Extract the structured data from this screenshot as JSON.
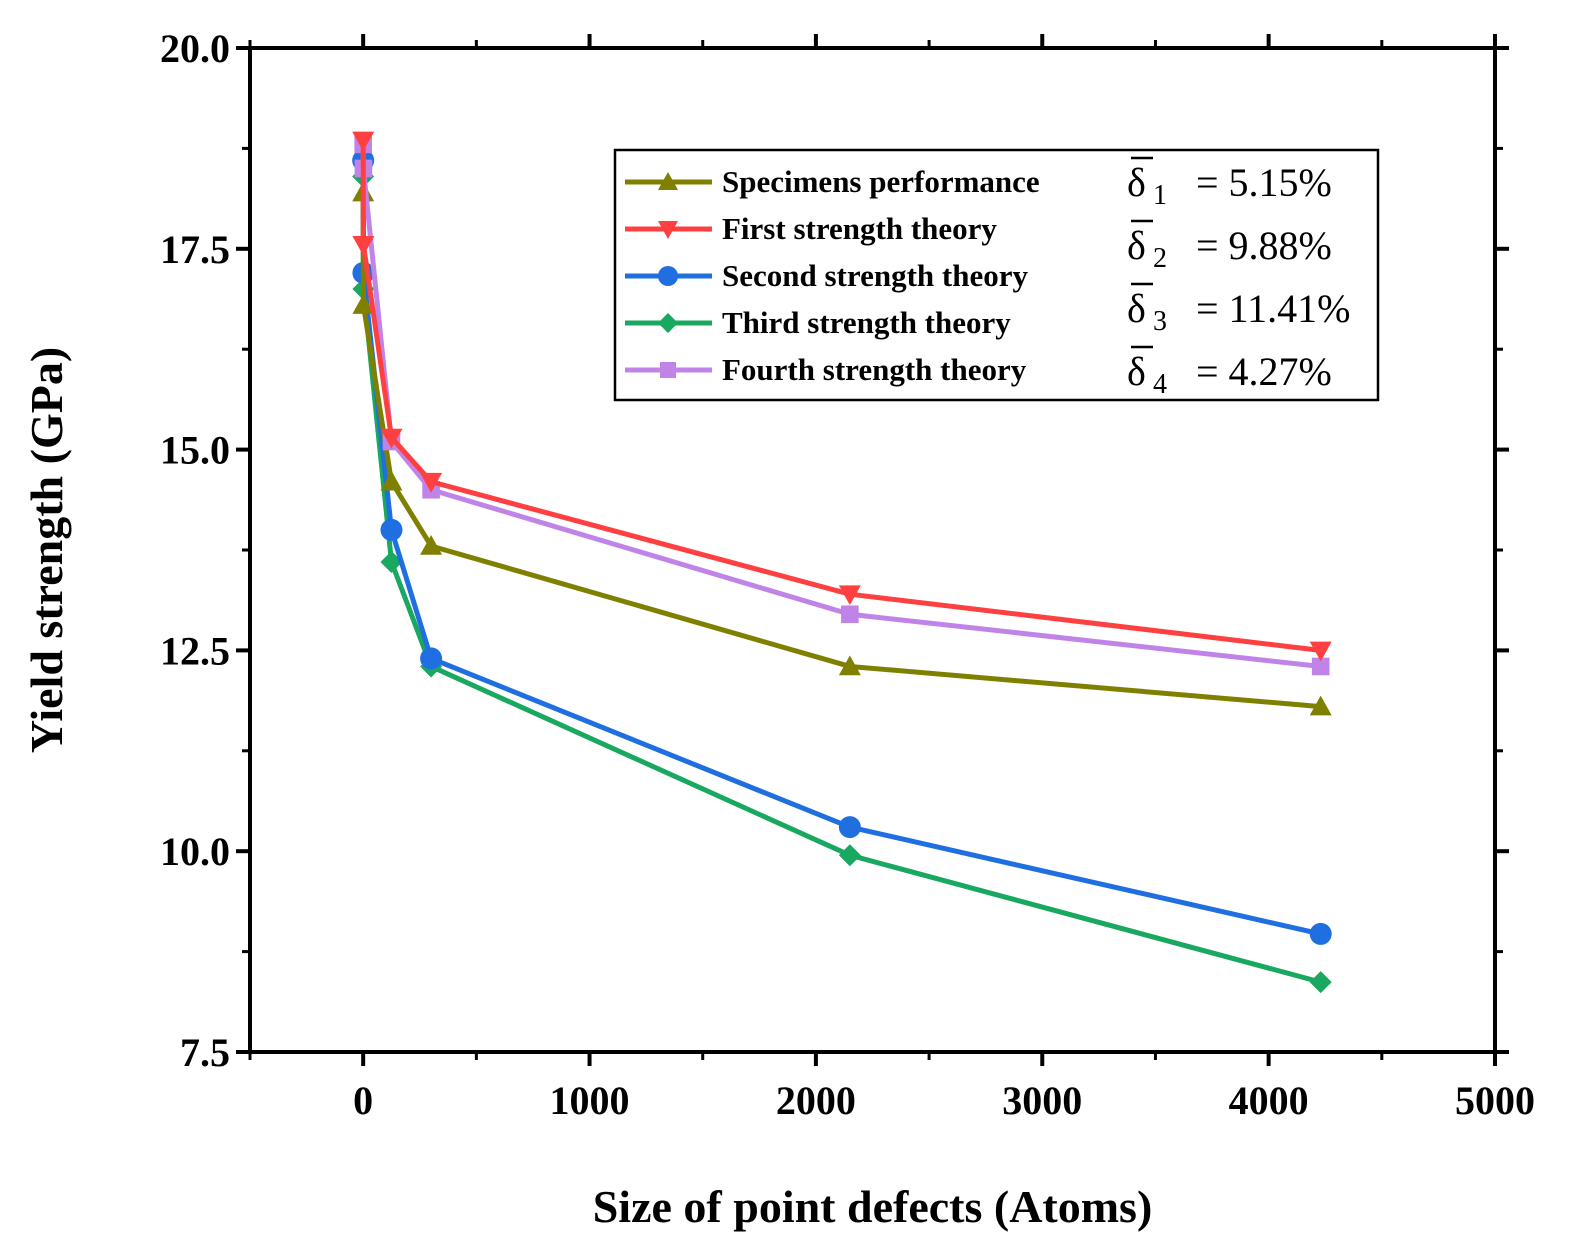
{
  "chart_data": {
    "type": "line",
    "title": "",
    "xlabel": "Size of point defects (Atoms)",
    "ylabel": "Yield strength (GPa)",
    "xlim": [
      -500,
      5000
    ],
    "ylim": [
      7.5,
      20.0
    ],
    "xticks": [
      0,
      1000,
      2000,
      3000,
      4000,
      5000
    ],
    "xtick_labels": [
      "0",
      "1000",
      "2000",
      "3000",
      "4000",
      "5000"
    ],
    "yticks": [
      7.5,
      10.0,
      12.5,
      15.0,
      17.5,
      20.0
    ],
    "ytick_labels": [
      "7.5",
      "10.0",
      "12.5",
      "15.0",
      "17.5",
      "20.0"
    ],
    "grid": false,
    "legend_position": "top-right",
    "series": [
      {
        "name": "Specimens performance",
        "color": "#808000",
        "marker": "triangle-up",
        "delta_symbol": "δ",
        "delta_sub": "1",
        "delta_value": "= 5.15%",
        "x": [
          0,
          1,
          125,
          300,
          2150,
          4230
        ],
        "y": [
          18.2,
          16.8,
          14.6,
          13.8,
          12.3,
          11.8
        ]
      },
      {
        "name": "First strength theory",
        "color": "#ff4040",
        "marker": "triangle-down",
        "delta_symbol": "δ",
        "delta_sub": "2",
        "delta_value": "= 9.88%",
        "x": [
          0,
          1,
          125,
          300,
          2150,
          4230
        ],
        "y": [
          18.85,
          17.55,
          15.15,
          14.6,
          13.2,
          12.5
        ]
      },
      {
        "name": "Second strength theory",
        "color": "#1f6fe0",
        "marker": "circle",
        "delta_symbol": "δ",
        "delta_sub": "3",
        "delta_value": "= 11.41%",
        "x": [
          0,
          1,
          125,
          300,
          2150,
          4230
        ],
        "y": [
          18.6,
          17.2,
          14.0,
          12.4,
          10.3,
          8.97
        ]
      },
      {
        "name": "Third strength theory",
        "color": "#18a860",
        "marker": "diamond",
        "delta_symbol": "δ",
        "delta_sub": "4",
        "delta_value": "= 4.27%",
        "x": [
          0,
          1,
          125,
          300,
          2150,
          4230
        ],
        "y": [
          18.4,
          17.0,
          13.6,
          12.3,
          9.95,
          8.37
        ]
      },
      {
        "name": "Fourth strength theory",
        "color": "#c084e8",
        "marker": "square",
        "x": [
          0,
          1,
          125,
          300,
          2150,
          4230
        ],
        "y": [
          18.8,
          18.5,
          15.1,
          14.5,
          12.95,
          12.3
        ]
      }
    ]
  }
}
